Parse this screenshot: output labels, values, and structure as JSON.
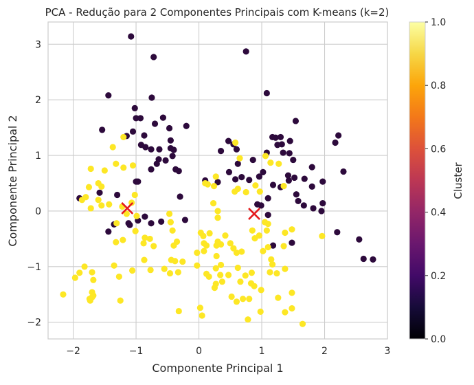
{
  "chart_data": {
    "type": "scatter",
    "title": "PCA - Redução para 2 Componentes Principais com K-means (k=2)",
    "xlabel": "Componente Principal 1",
    "ylabel": "Componente Principal 2",
    "xlim": [
      -2.4,
      3.0
    ],
    "ylim": [
      -2.3,
      3.4
    ],
    "xticks": [
      -2,
      -1,
      0,
      1,
      2,
      3
    ],
    "yticks": [
      -2,
      -1,
      0,
      1,
      2,
      3
    ],
    "xtick_labels": [
      "−2",
      "−1",
      "0",
      "1",
      "2",
      "3"
    ],
    "ytick_labels": [
      "−2",
      "−1",
      "0",
      "1",
      "2",
      "3"
    ],
    "grid": true,
    "colorbar": {
      "label": "Cluster",
      "min": 0.0,
      "max": 1.0,
      "ticks": [
        0.0,
        0.2,
        0.4,
        0.6,
        0.8,
        1.0
      ],
      "tick_labels": [
        "0.0",
        "0.2",
        "0.4",
        "0.6",
        "0.8",
        "1.0"
      ],
      "colormap": "inferno"
    },
    "colors": {
      "cluster_0": "#2d0a3c",
      "cluster_1": "#fde725",
      "centroid": "#e41a1c"
    },
    "series": [
      {
        "cluster": 0,
        "points": [
          [
            -1.08,
            3.14
          ],
          [
            -0.72,
            2.77
          ],
          [
            0.75,
            2.87
          ],
          [
            -1.44,
            2.08
          ],
          [
            -0.75,
            2.04
          ],
          [
            1.08,
            2.12
          ],
          [
            -1.02,
            1.85
          ],
          [
            -1.0,
            1.67
          ],
          [
            -0.93,
            1.67
          ],
          [
            -0.57,
            1.68
          ],
          [
            -1.54,
            1.46
          ],
          [
            -1.05,
            1.43
          ],
          [
            -0.7,
            1.57
          ],
          [
            -0.47,
            1.49
          ],
          [
            -0.2,
            1.53
          ],
          [
            1.54,
            1.62
          ],
          [
            -1.15,
            1.35
          ],
          [
            -0.87,
            1.36
          ],
          [
            -0.45,
            1.27
          ],
          [
            -0.92,
            1.19
          ],
          [
            -0.85,
            1.15
          ],
          [
            -0.76,
            1.11
          ],
          [
            -0.63,
            1.11
          ],
          [
            -0.45,
            1.13
          ],
          [
            -0.4,
            1.1
          ],
          [
            -0.42,
            0.99
          ],
          [
            0.47,
            1.26
          ],
          [
            0.55,
            1.2
          ],
          [
            0.35,
            1.08
          ],
          [
            0.6,
            1.11
          ],
          [
            1.08,
            1.05
          ],
          [
            1.17,
            1.33
          ],
          [
            1.22,
            1.32
          ],
          [
            1.25,
            1.19
          ],
          [
            1.3,
            1.33
          ],
          [
            1.34,
            1.05
          ],
          [
            1.32,
            1.2
          ],
          [
            1.45,
            1.26
          ],
          [
            1.44,
            1.04
          ],
          [
            2.22,
            1.36
          ],
          [
            2.17,
            1.23
          ],
          [
            -0.76,
            0.75
          ],
          [
            -0.67,
            0.85
          ],
          [
            -0.64,
            0.93
          ],
          [
            -0.53,
            0.91
          ],
          [
            -0.37,
            0.75
          ],
          [
            -0.32,
            0.72
          ],
          [
            0.62,
            0.85
          ],
          [
            0.86,
            0.92
          ],
          [
            1.02,
            0.7
          ],
          [
            1.5,
            0.92
          ],
          [
            1.8,
            0.79
          ],
          [
            2.3,
            0.71
          ],
          [
            -0.97,
            0.53
          ],
          [
            -1.0,
            0.53
          ],
          [
            0.1,
            0.55
          ],
          [
            0.3,
            0.52
          ],
          [
            0.48,
            0.7
          ],
          [
            0.68,
            0.61
          ],
          [
            1.43,
            0.55
          ],
          [
            1.42,
            0.64
          ],
          [
            1.52,
            0.6
          ],
          [
            1.68,
            0.58
          ],
          [
            1.97,
            0.53
          ],
          [
            1.18,
            0.47
          ],
          [
            1.3,
            0.43
          ],
          [
            -1.9,
            0.23
          ],
          [
            -1.58,
            0.33
          ],
          [
            -1.3,
            0.29
          ],
          [
            -0.3,
            0.26
          ],
          [
            0.58,
            0.57
          ],
          [
            0.8,
            0.56
          ],
          [
            0.96,
            0.62
          ],
          [
            1.55,
            0.3
          ],
          [
            1.8,
            0.44
          ],
          [
            1.1,
            0.23
          ],
          [
            0.93,
            0.12
          ],
          [
            0.99,
            0.1
          ],
          [
            1.1,
            -0.07
          ],
          [
            1.58,
            0.18
          ],
          [
            1.67,
            0.1
          ],
          [
            1.82,
            0.05
          ],
          [
            1.97,
            0.14
          ],
          [
            1.95,
            -0.0
          ],
          [
            -1.44,
            -0.37
          ],
          [
            -1.35,
            -0.24
          ],
          [
            -1.12,
            -0.22
          ],
          [
            -1.1,
            -0.25
          ],
          [
            -0.97,
            -0.17
          ],
          [
            -0.86,
            -0.1
          ],
          [
            -0.76,
            -0.22
          ],
          [
            -0.6,
            -0.19
          ],
          [
            -0.22,
            -0.16
          ],
          [
            2.2,
            -0.38
          ],
          [
            2.55,
            -0.51
          ],
          [
            2.62,
            -0.86
          ],
          [
            2.77,
            -0.87
          ],
          [
            1.18,
            -0.62
          ],
          [
            1.48,
            -0.57
          ]
        ]
      },
      {
        "cluster": 1,
        "points": [
          [
            -1.2,
            1.33
          ],
          [
            -1.37,
            1.15
          ],
          [
            -1.32,
            0.85
          ],
          [
            -1.2,
            0.78
          ],
          [
            -1.05,
            0.82
          ],
          [
            -1.5,
            0.73
          ],
          [
            -1.72,
            0.76
          ],
          [
            -1.75,
            0.43
          ],
          [
            -1.6,
            0.5
          ],
          [
            -1.55,
            0.44
          ],
          [
            -1.86,
            0.2
          ],
          [
            -1.8,
            0.25
          ],
          [
            -1.72,
            0.05
          ],
          [
            -1.6,
            0.2
          ],
          [
            -1.55,
            0.1
          ],
          [
            -1.43,
            0.12
          ],
          [
            -1.22,
            0.08
          ],
          [
            -1.07,
            0.15
          ],
          [
            -1.02,
            0.29
          ],
          [
            -0.99,
            -0.09
          ],
          [
            -1.31,
            -0.22
          ],
          [
            -1.32,
            -0.56
          ],
          [
            -1.21,
            -0.52
          ],
          [
            -1.15,
            -0.05
          ],
          [
            -1.01,
            -0.36
          ],
          [
            -0.88,
            -0.58
          ],
          [
            -0.78,
            -0.5
          ],
          [
            -0.72,
            -0.63
          ],
          [
            -0.86,
            -0.48
          ],
          [
            -0.47,
            -0.05
          ],
          [
            -0.45,
            -0.2
          ],
          [
            -0.42,
            -0.35
          ],
          [
            -0.35,
            -0.55
          ],
          [
            -0.4,
            -0.62
          ],
          [
            0.03,
            -0.39
          ],
          [
            0.07,
            -0.45
          ],
          [
            0.17,
            -0.4
          ],
          [
            0.08,
            -0.58
          ],
          [
            0.12,
            -0.62
          ],
          [
            0.3,
            -0.55
          ],
          [
            0.28,
            -0.62
          ],
          [
            0.35,
            -0.6
          ],
          [
            0.42,
            -0.44
          ],
          [
            0.5,
            -0.58
          ],
          [
            0.55,
            -0.67
          ],
          [
            0.6,
            -0.75
          ],
          [
            0.68,
            -0.73
          ],
          [
            0.85,
            -0.35
          ],
          [
            0.89,
            -0.49
          ],
          [
            0.96,
            -0.44
          ],
          [
            1.02,
            -0.72
          ],
          [
            1.08,
            -0.35
          ],
          [
            1.05,
            -0.2
          ],
          [
            1.1,
            -0.23
          ],
          [
            1.1,
            -0.65
          ],
          [
            1.15,
            -0.87
          ],
          [
            1.17,
            -0.96
          ],
          [
            1.35,
            -0.63
          ],
          [
            1.37,
            -0.39
          ],
          [
            1.48,
            -0.33
          ],
          [
            1.96,
            -0.45
          ],
          [
            0.1,
            0.5
          ],
          [
            0.14,
            0.48
          ],
          [
            0.24,
            0.45
          ],
          [
            0.27,
            0.62
          ],
          [
            0.23,
            0.14
          ],
          [
            0.3,
            0.0
          ],
          [
            0.3,
            -0.12
          ],
          [
            0.57,
            0.35
          ],
          [
            0.62,
            0.4
          ],
          [
            0.75,
            0.34
          ],
          [
            0.9,
            0.46
          ],
          [
            0.97,
            0.35
          ],
          [
            1.06,
            0.99
          ],
          [
            1.14,
            0.87
          ],
          [
            1.27,
            0.85
          ],
          [
            1.35,
            0.45
          ],
          [
            0.58,
            1.23
          ],
          [
            0.65,
            0.95
          ],
          [
            -0.03,
            -0.98
          ],
          [
            -0.03,
            -0.75
          ],
          [
            0.08,
            -0.72
          ],
          [
            0.28,
            -0.81
          ],
          [
            0.35,
            -0.97
          ],
          [
            0.27,
            -1.03
          ],
          [
            0.34,
            -1.15
          ],
          [
            0.12,
            -1.13
          ],
          [
            0.16,
            -1.18
          ],
          [
            0.27,
            -1.31
          ],
          [
            0.25,
            -1.38
          ],
          [
            0.37,
            -1.27
          ],
          [
            0.47,
            -1.15
          ],
          [
            0.62,
            -1.02
          ],
          [
            0.66,
            -1.27
          ],
          [
            0.74,
            -1.16
          ],
          [
            0.84,
            -1.11
          ],
          [
            0.83,
            -1.3
          ],
          [
            0.88,
            -1.35
          ],
          [
            1.13,
            -1.1
          ],
          [
            1.24,
            -1.12
          ],
          [
            1.37,
            -1.04
          ],
          [
            0.52,
            -1.54
          ],
          [
            0.6,
            -1.63
          ],
          [
            0.7,
            -1.58
          ],
          [
            0.8,
            -1.58
          ],
          [
            0.99,
            -1.42
          ],
          [
            1.26,
            -1.56
          ],
          [
            1.48,
            -1.47
          ],
          [
            1.48,
            -1.75
          ],
          [
            1.65,
            -2.03
          ],
          [
            1.37,
            -1.82
          ],
          [
            0.78,
            -1.95
          ],
          [
            0.98,
            -1.81
          ],
          [
            0.05,
            -1.88
          ],
          [
            0.02,
            -1.74
          ],
          [
            -1.97,
            -1.2
          ],
          [
            -1.9,
            -1.11
          ],
          [
            -1.82,
            -1.0
          ],
          [
            -1.7,
            -1.1
          ],
          [
            -1.68,
            -1.24
          ],
          [
            -1.7,
            -1.46
          ],
          [
            -1.7,
            -1.55
          ],
          [
            -1.74,
            -1.58
          ],
          [
            -1.73,
            -1.61
          ],
          [
            -1.68,
            -1.52
          ],
          [
            -1.35,
            -0.98
          ],
          [
            -1.27,
            -1.18
          ],
          [
            -1.25,
            -1.61
          ],
          [
            -1.06,
            -1.07
          ],
          [
            -0.87,
            -0.88
          ],
          [
            -0.77,
            -1.06
          ],
          [
            -0.55,
            -1.04
          ],
          [
            -0.38,
            -0.9
          ],
          [
            -0.26,
            -0.91
          ],
          [
            -0.46,
            -1.12
          ],
          [
            -0.44,
            -0.88
          ],
          [
            -0.33,
            -1.1
          ],
          [
            -0.32,
            -1.8
          ],
          [
            -2.16,
            -1.5
          ]
        ]
      }
    ],
    "centroids": [
      [
        -1.14,
        0.05
      ],
      [
        0.88,
        -0.05
      ]
    ]
  }
}
